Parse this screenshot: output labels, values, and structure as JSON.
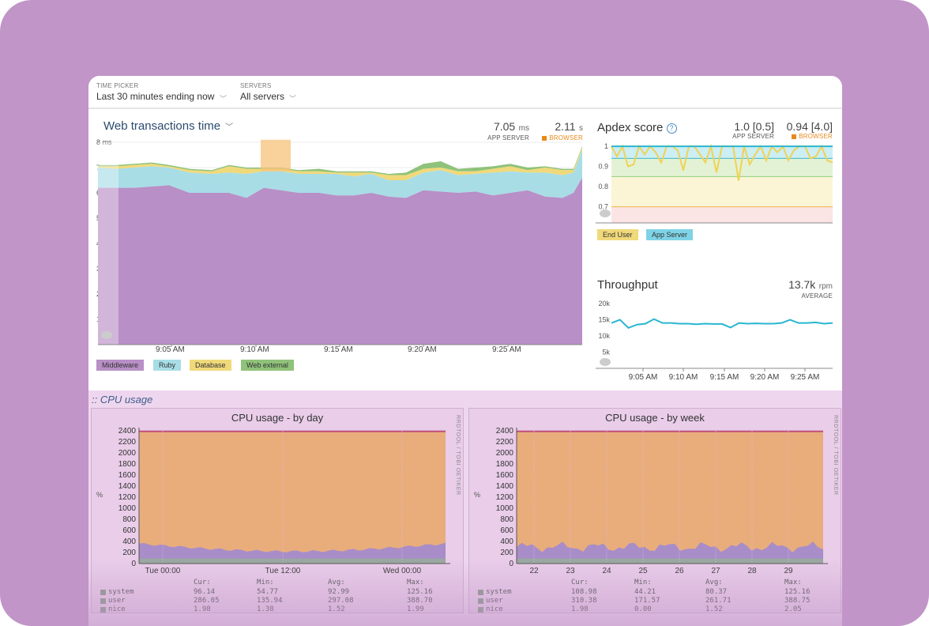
{
  "topbar": {
    "time_picker_label": "TIME PICKER",
    "time_picker_value": "Last 30 minutes ending now",
    "servers_label": "SERVERS",
    "servers_value": "All servers"
  },
  "web": {
    "title": "Web transactions time",
    "app_value": "7.05",
    "app_unit": "ms",
    "app_label": "APP SERVER",
    "browser_value": "2.11",
    "browser_unit": "s",
    "browser_label": "BROWSER",
    "y_ticks": [
      "8 ms",
      "7 ms",
      "6 ms",
      "5 ms",
      "4 ms",
      "3 ms",
      "2 ms",
      "1 ms"
    ],
    "x_ticks": [
      "9:05 AM",
      "9:10 AM",
      "9:15 AM",
      "9:20 AM",
      "9:25 AM"
    ],
    "legend": [
      "Middleware",
      "Ruby",
      "Database",
      "Web external"
    ],
    "colors": {
      "middleware": "#b88fc6",
      "ruby": "#a8dde6",
      "database": "#f0d97a",
      "web_external": "#8fc27a",
      "highlight": "#f7c17a"
    }
  },
  "apdex": {
    "title": "Apdex score",
    "app_value": "1.0 [0.5]",
    "app_label": "APP SERVER",
    "browser_value": "0.94 [4.0]",
    "browser_label": "BROWSER",
    "y_ticks": [
      "1",
      "0.9",
      "0.8",
      "0.7"
    ],
    "legend": [
      "End User",
      "App Server"
    ]
  },
  "throughput": {
    "title": "Throughput",
    "value": "13.7k",
    "unit": "rpm",
    "label": "AVERAGE",
    "y_ticks": [
      "20k",
      "15k",
      "10k",
      "5k"
    ],
    "x_ticks": [
      "9:05 AM",
      "9:10 AM",
      "9:15 AM",
      "9:20 AM",
      "9:25 AM"
    ]
  },
  "cpu": {
    "section_title": ":: CPU usage",
    "day_title": "CPU usage - by day",
    "week_title": "CPU usage - by week",
    "y_ticks": [
      "2400",
      "2200",
      "2000",
      "1800",
      "1600",
      "1400",
      "1200",
      "1000",
      "800",
      "600",
      "400",
      "200",
      "0"
    ],
    "y_unit": "%",
    "day_x_ticks": [
      "Tue 00:00",
      "Tue 12:00",
      "Wed 00:00"
    ],
    "week_x_ticks": [
      "22",
      "23",
      "24",
      "25",
      "26",
      "27",
      "28",
      "29"
    ],
    "side_label": "RRDTOOL / TOBI OETIKER",
    "stat_headers": [
      "Cur:",
      "Min:",
      "Avg:",
      "Max:"
    ],
    "day_rows": [
      {
        "name": "system",
        "cur": "96.14",
        "min": "54.77",
        "avg": "92.99",
        "max": "125.16"
      },
      {
        "name": "user",
        "cur": "286.05",
        "min": "135.94",
        "avg": "297.08",
        "max": "388.70"
      },
      {
        "name": "nice",
        "cur": "1.98",
        "min": "1.38",
        "avg": "1.52",
        "max": "1.99"
      }
    ],
    "week_rows": [
      {
        "name": "system",
        "cur": "108.98",
        "min": "44.21",
        "avg": "80.37",
        "max": "125.16"
      },
      {
        "name": "user",
        "cur": "310.38",
        "min": "171.57",
        "avg": "261.71",
        "max": "388.75"
      },
      {
        "name": "nice",
        "cur": "1.98",
        "min": "0.00",
        "avg": "1.52",
        "max": "2.05"
      }
    ]
  }
}
